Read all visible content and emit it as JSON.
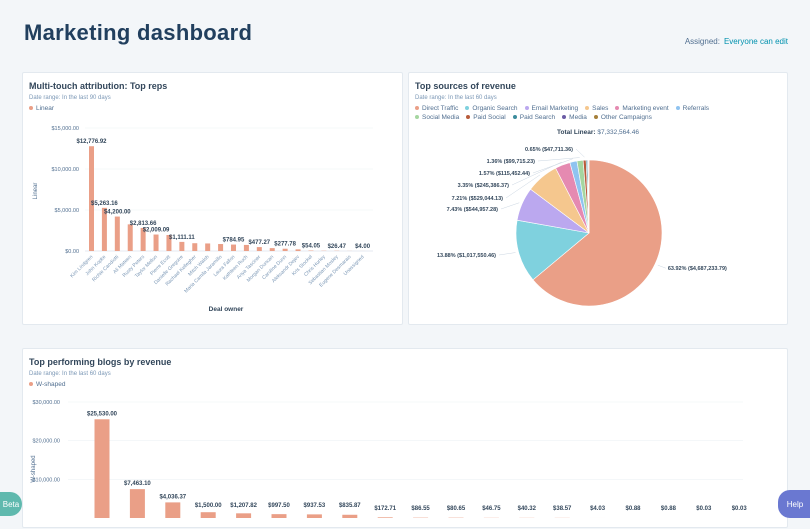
{
  "header": {
    "title": "Marketing dashboard",
    "assigned_label": "Assigned:",
    "assigned_value": "Everyone can edit"
  },
  "colors": {
    "bar": "#ea9f87",
    "text": "#33475b",
    "link": "#0091ae"
  },
  "reps": {
    "title": "Multi-touch attribution: Top reps",
    "subtitle": "Date range: In the last 90 days",
    "legend": "Linear"
  },
  "sources": {
    "title": "Top sources of revenue",
    "subtitle": "Date range: In the last 60 days",
    "total_label": "Total Linear:",
    "total_value": "$7,332,564.46"
  },
  "blogs": {
    "title": "Top performing blogs by revenue",
    "subtitle": "Date range: In the last 60 days",
    "legend": "W-shaped"
  },
  "buttons": {
    "beta": "Beta",
    "help": "Help"
  },
  "chart_data": [
    {
      "type": "bar",
      "title": "Multi-touch attribution: Top reps",
      "xlabel": "Deal owner",
      "ylabel": "Linear",
      "ylim": [
        0,
        15000
      ],
      "yticks": [
        "$0.00",
        "$5,000.00",
        "$10,000.00",
        "$15,000.00"
      ],
      "grid": true,
      "legend": "top-left",
      "categories": [
        "Kim Lindgren",
        "John Kopke",
        "Richie Candiotti",
        "Ali Mateen",
        "Rusty Peters",
        "Taylor Mellon",
        "Pierre Ecott",
        "Danielle Gregoire",
        "Rachael Kellegher",
        "Mitch Walsh",
        "Maria Camila Jaramillo",
        "Laura Fallon",
        "Kathleen Ruch",
        "Anya Tasciner",
        "Morgan Duncan",
        "Caroline Dunn",
        "Aleksandr Dejev",
        "Kris Stockel",
        "Chris Hurley",
        "Sebastian Mosley",
        "Eugene Desmarais",
        "Unassigned"
      ],
      "series": [
        {
          "name": "Linear",
          "values": [
            12776.92,
            5263.16,
            4200,
            3250,
            2813.66,
            2009.09,
            1950,
            1111.11,
            950,
            920,
            850,
            784.95,
            740,
            477.27,
            350,
            277.78,
            200,
            54.05,
            30,
            26.47,
            10,
            4
          ]
        }
      ],
      "data_labels": [
        "$12,776.92",
        "$5,263.16",
        "$4,200.00",
        "",
        "$2,813.66",
        "$2,009.09",
        "",
        "$1,111.11",
        "",
        "",
        "",
        "$784.95",
        "",
        "$477.27",
        "",
        "$277.78",
        "",
        "$54.05",
        "",
        "$26.47",
        "",
        "$4.00"
      ]
    },
    {
      "type": "pie",
      "title": "Top sources of revenue",
      "legend": "top",
      "slices": [
        {
          "name": "Direct Traffic",
          "value": 63.92,
          "label": "63.92% ($4,687,233.79)",
          "color": "#ea9f87"
        },
        {
          "name": "Organic Search",
          "value": 13.88,
          "label": "13.88% ($1,017,550.46)",
          "color": "#7fd1de"
        },
        {
          "name": "Email Marketing",
          "value": 7.43,
          "label": "7.43% ($544,957.28)",
          "color": "#bba8ef"
        },
        {
          "name": "Sales",
          "value": 7.21,
          "label": "7.21% ($529,044.13)",
          "color": "#f5c78e"
        },
        {
          "name": "Marketing event",
          "value": 3.35,
          "label": "3.35% ($245,386.37)",
          "color": "#e58ab1"
        },
        {
          "name": "Referrals",
          "value": 1.57,
          "label": "1.57% ($115,452.44)",
          "color": "#8fc3f0"
        },
        {
          "name": "Social Media",
          "value": 1.36,
          "label": "1.36% ($99,715.23)",
          "color": "#a5d6a0"
        },
        {
          "name": "Paid Social",
          "value": 0.65,
          "label": "0.65% ($47,711.36)",
          "color": "#b85c3c"
        },
        {
          "name": "Paid Search",
          "value": 0.3,
          "label": "",
          "color": "#3c8c9c"
        },
        {
          "name": "Media",
          "value": 0.2,
          "label": "",
          "color": "#6b5ca5"
        },
        {
          "name": "Other Campaigns",
          "value": 0.13,
          "label": "",
          "color": "#a6803a"
        }
      ]
    },
    {
      "type": "bar",
      "title": "Top performing blogs by revenue",
      "ylabel": "W-shaped",
      "ylim": [
        0,
        30000
      ],
      "yticks": [
        "$10,000.00",
        "$20,000.00",
        "$30,000.00"
      ],
      "grid": true,
      "legend": "top-left",
      "series": [
        {
          "name": "W-shaped",
          "values": [
            25530,
            7463.1,
            4036.37,
            1500,
            1207.82,
            997.5,
            937.53,
            835.87,
            172.71,
            86.55,
            80.65,
            46.75,
            40.32,
            38.57,
            4.03,
            0.88,
            0.88,
            0.03,
            0.03
          ]
        }
      ],
      "data_labels": [
        "$25,530.00",
        "$7,463.10",
        "$4,036.37",
        "$1,500.00",
        "$1,207.82",
        "$997.50",
        "$937.53",
        "$835.87",
        "$172.71",
        "$86.55",
        "$80.65",
        "$46.75",
        "$40.32",
        "$38.57",
        "$4.03",
        "$0.88",
        "$0.88",
        "$0.03",
        "$0.03"
      ]
    }
  ]
}
